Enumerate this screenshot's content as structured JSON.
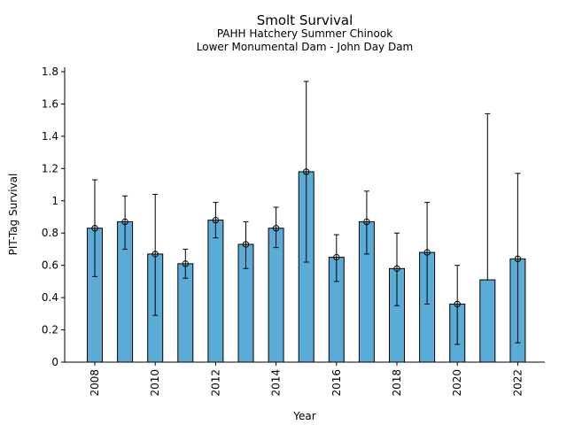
{
  "chart_data": {
    "type": "bar",
    "title": "Smolt Survival",
    "subtitle_1": "PAHH Hatchery Summer Chinook",
    "subtitle_2": "Lower Monumental Dam - John Day Dam",
    "xlabel": "Year",
    "ylabel": "PIT-Tag Survival",
    "ylim": [
      0,
      1.8
    ],
    "yticks": [
      0,
      0.2,
      0.4,
      0.6,
      0.8,
      1,
      1.2,
      1.4,
      1.6,
      1.8
    ],
    "ytick_labels": [
      "0",
      "0.2",
      "0.4",
      "0.6",
      "0.8",
      "1",
      "1.2",
      "1.4",
      "1.6",
      "1.8"
    ],
    "xtick_labels": [
      "2008",
      "2010",
      "2012",
      "2014",
      "2016",
      "2018",
      "2020",
      "2022"
    ],
    "categories": [
      2008,
      2009,
      2010,
      2011,
      2012,
      2013,
      2014,
      2015,
      2016,
      2017,
      2018,
      2019,
      2020,
      2021,
      2022
    ],
    "values": [
      0.83,
      0.87,
      0.67,
      0.61,
      0.88,
      0.73,
      0.83,
      1.18,
      0.65,
      0.87,
      0.58,
      0.68,
      0.36,
      0.51,
      0.64
    ],
    "error_low": [
      0.53,
      0.7,
      0.29,
      0.52,
      0.77,
      0.58,
      0.71,
      0.62,
      0.5,
      0.67,
      0.35,
      0.36,
      0.11,
      null,
      0.12
    ],
    "error_high": [
      1.13,
      1.03,
      1.04,
      0.7,
      0.99,
      0.87,
      0.96,
      1.74,
      0.79,
      1.06,
      0.8,
      0.99,
      0.6,
      1.54,
      1.17
    ],
    "point_markers": [
      true,
      true,
      true,
      true,
      true,
      true,
      true,
      true,
      true,
      true,
      true,
      true,
      true,
      false,
      true
    ],
    "bar_color": "#5aabd6",
    "edge_color": "#000000",
    "grid": false,
    "legend": "none"
  }
}
